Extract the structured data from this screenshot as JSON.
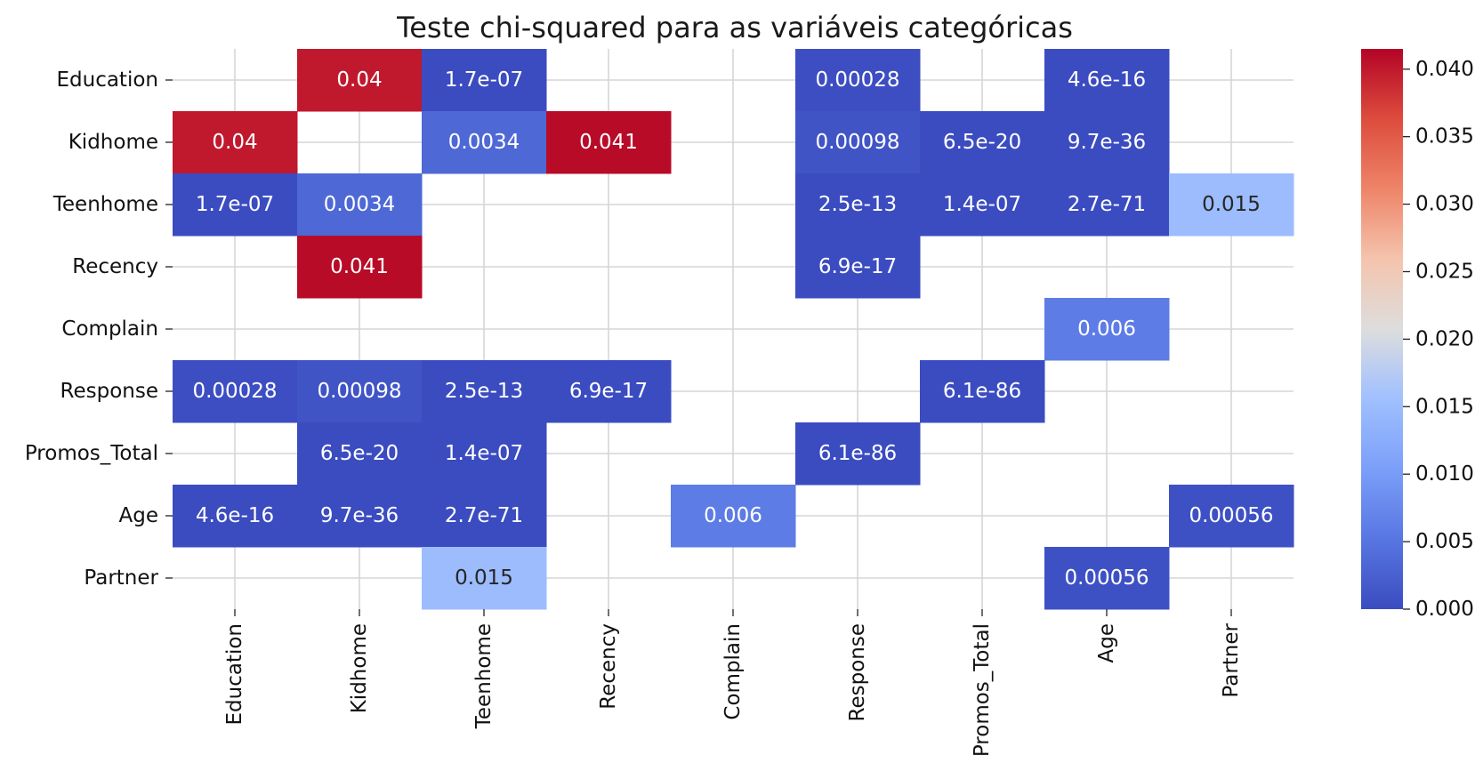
{
  "chart_data": {
    "type": "heatmap",
    "title": "Teste chi-squared para as  variáveis categóricas",
    "xlabel": "",
    "ylabel": "",
    "rows": [
      "Education",
      "Kidhome",
      "Teenhome",
      "Recency",
      "Complain",
      "Response",
      "Promos_Total",
      "Age",
      "Partner"
    ],
    "columns": [
      "Education",
      "Kidhome",
      "Teenhome",
      "Recency",
      "Complain",
      "Response",
      "Promos_Total",
      "Age",
      "Partner"
    ],
    "colormap": "coolwarm",
    "grid": true,
    "colorbar": {
      "min": 0,
      "max": 0.0415,
      "ticks": [
        0.0,
        0.005,
        0.01,
        0.015,
        0.02,
        0.025,
        0.03,
        0.035,
        0.04
      ],
      "tick_labels": [
        "0.000",
        "0.005",
        "0.010",
        "0.015",
        "0.020",
        "0.025",
        "0.030",
        "0.035",
        "0.040"
      ]
    },
    "cells": [
      {
        "row": 0,
        "col": 1,
        "value": 0.04,
        "label": "0.04"
      },
      {
        "row": 0,
        "col": 2,
        "value": 1.7e-07,
        "label": "1.7e-07"
      },
      {
        "row": 0,
        "col": 5,
        "value": 0.00028,
        "label": "0.00028"
      },
      {
        "row": 0,
        "col": 7,
        "value": 4.6e-16,
        "label": "4.6e-16"
      },
      {
        "row": 1,
        "col": 0,
        "value": 0.04,
        "label": "0.04"
      },
      {
        "row": 1,
        "col": 2,
        "value": 0.0034,
        "label": "0.0034"
      },
      {
        "row": 1,
        "col": 3,
        "value": 0.041,
        "label": "0.041"
      },
      {
        "row": 1,
        "col": 5,
        "value": 0.00098,
        "label": "0.00098"
      },
      {
        "row": 1,
        "col": 6,
        "value": 6.5e-20,
        "label": "6.5e-20"
      },
      {
        "row": 1,
        "col": 7,
        "value": 9.7e-36,
        "label": "9.7e-36"
      },
      {
        "row": 2,
        "col": 0,
        "value": 1.7e-07,
        "label": "1.7e-07"
      },
      {
        "row": 2,
        "col": 1,
        "value": 0.0034,
        "label": "0.0034"
      },
      {
        "row": 2,
        "col": 5,
        "value": 2.5e-13,
        "label": "2.5e-13"
      },
      {
        "row": 2,
        "col": 6,
        "value": 1.4e-07,
        "label": "1.4e-07"
      },
      {
        "row": 2,
        "col": 7,
        "value": 2.7e-71,
        "label": "2.7e-71"
      },
      {
        "row": 2,
        "col": 8,
        "value": 0.015,
        "label": "0.015"
      },
      {
        "row": 3,
        "col": 1,
        "value": 0.041,
        "label": "0.041"
      },
      {
        "row": 3,
        "col": 5,
        "value": 6.9e-17,
        "label": "6.9e-17"
      },
      {
        "row": 4,
        "col": 7,
        "value": 0.006,
        "label": "0.006"
      },
      {
        "row": 5,
        "col": 0,
        "value": 0.00028,
        "label": "0.00028"
      },
      {
        "row": 5,
        "col": 1,
        "value": 0.00098,
        "label": "0.00098"
      },
      {
        "row": 5,
        "col": 2,
        "value": 2.5e-13,
        "label": "2.5e-13"
      },
      {
        "row": 5,
        "col": 3,
        "value": 6.9e-17,
        "label": "6.9e-17"
      },
      {
        "row": 5,
        "col": 6,
        "value": 6.1e-86,
        "label": "6.1e-86"
      },
      {
        "row": 6,
        "col": 1,
        "value": 6.5e-20,
        "label": "6.5e-20"
      },
      {
        "row": 6,
        "col": 2,
        "value": 1.4e-07,
        "label": "1.4e-07"
      },
      {
        "row": 6,
        "col": 5,
        "value": 6.1e-86,
        "label": "6.1e-86"
      },
      {
        "row": 7,
        "col": 0,
        "value": 4.6e-16,
        "label": "4.6e-16"
      },
      {
        "row": 7,
        "col": 1,
        "value": 9.7e-36,
        "label": "9.7e-36"
      },
      {
        "row": 7,
        "col": 2,
        "value": 2.7e-71,
        "label": "2.7e-71"
      },
      {
        "row": 7,
        "col": 4,
        "value": 0.006,
        "label": "0.006"
      },
      {
        "row": 7,
        "col": 8,
        "value": 0.00056,
        "label": "0.00056"
      },
      {
        "row": 8,
        "col": 2,
        "value": 0.015,
        "label": "0.015"
      },
      {
        "row": 8,
        "col": 7,
        "value": 0.00056,
        "label": "0.00056"
      }
    ]
  }
}
